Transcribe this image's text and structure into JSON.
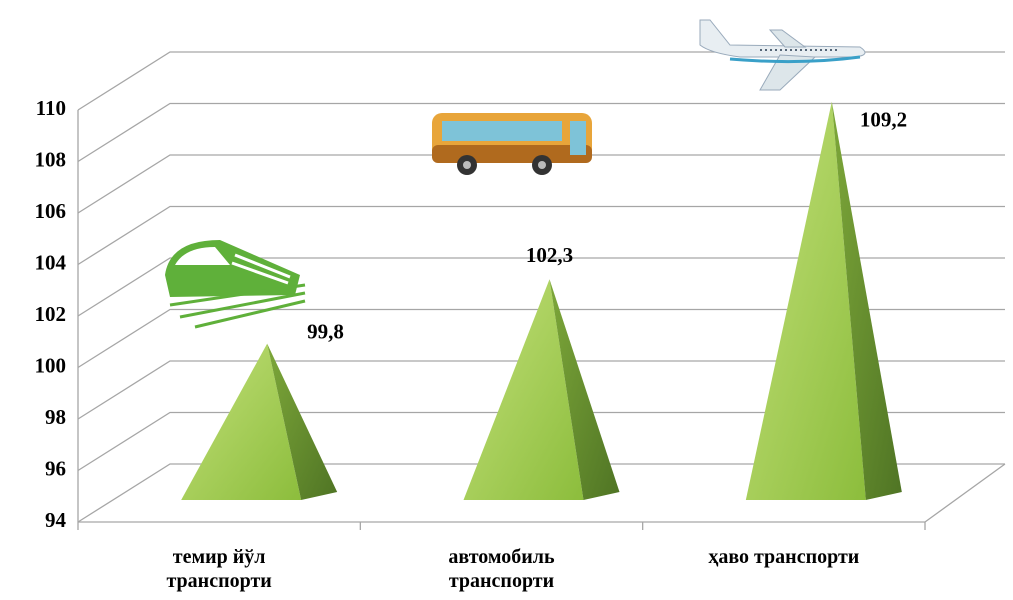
{
  "chart_data": {
    "type": "pyramid3d",
    "categories": [
      "темир йўл транспорти",
      "автомобиль транспорти",
      "ҳаво транспорти"
    ],
    "values": [
      99.8,
      102.3,
      109.2
    ],
    "value_labels": [
      "99,8",
      "102,3",
      "109,2"
    ],
    "color": "#8cc63f",
    "ylim": [
      94,
      110
    ],
    "yticks": [
      94,
      96,
      98,
      100,
      102,
      104,
      106,
      108,
      110
    ],
    "grid": true
  }
}
